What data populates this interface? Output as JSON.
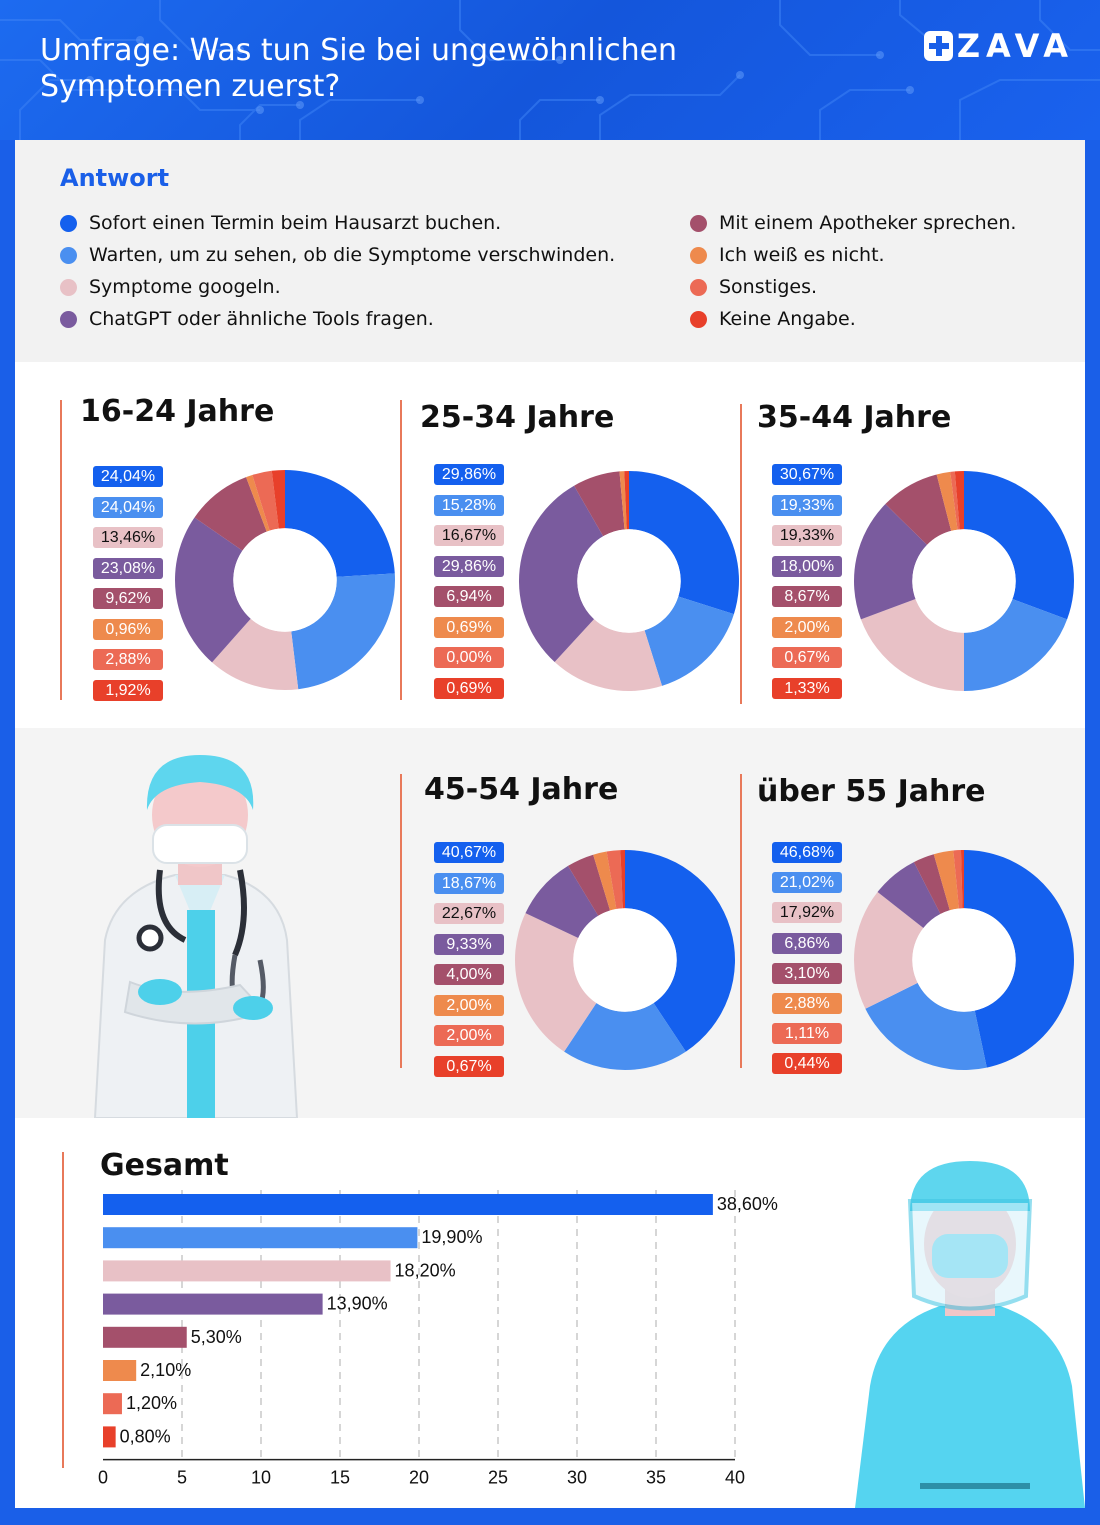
{
  "header": {
    "title_line1": "Umfrage: Was tun Sie bei ungewöhnlichen",
    "title_line2": "Symptomen zuerst?",
    "logo": "ZAVA"
  },
  "colors": [
    "#1460ee",
    "#4a8ff0",
    "#e8c1c6",
    "#7a5b9e",
    "#a4506b",
    "#ee8a4d",
    "#ec6a55",
    "#e8402a"
  ],
  "legend": {
    "title": "Antwort",
    "items": [
      "Sofort einen Termin beim Hausarzt buchen.",
      "Warten, um zu sehen, ob die Symptome verschwinden.",
      "Symptome googeln.",
      "ChatGPT oder ähnliche Tools fragen.",
      "Mit einem Apotheker sprechen.",
      "Ich weiß es nicht.",
      "Sonstiges.",
      "Keine Angabe."
    ]
  },
  "chart_data": [
    {
      "type": "pie",
      "title": "16-24 Jahre",
      "categories": [
        "Sofort einen Termin beim Hausarzt buchen.",
        "Warten, um zu sehen, ob die Symptome verschwinden.",
        "Symptome googeln.",
        "ChatGPT oder ähnliche Tools fragen.",
        "Mit einem Apotheker sprechen.",
        "Ich weiß es nicht.",
        "Sonstiges.",
        "Keine Angabe."
      ],
      "values": [
        24.04,
        24.04,
        13.46,
        23.08,
        9.62,
        0.96,
        2.88,
        1.92
      ],
      "labels": [
        "24,04%",
        "24,04%",
        "13,46%",
        "23,08%",
        "9,62%",
        "0,96%",
        "2,88%",
        "1,92%"
      ]
    },
    {
      "type": "pie",
      "title": "25-34 Jahre",
      "categories": [
        "Sofort einen Termin beim Hausarzt buchen.",
        "Warten, um zu sehen, ob die Symptome verschwinden.",
        "Symptome googeln.",
        "ChatGPT oder ähnliche Tools fragen.",
        "Mit einem Apotheker sprechen.",
        "Ich weiß es nicht.",
        "Sonstiges.",
        "Keine Angabe."
      ],
      "values": [
        29.86,
        15.28,
        16.67,
        29.86,
        6.94,
        0.69,
        0.0,
        0.69
      ],
      "labels": [
        "29,86%",
        "15,28%",
        "16,67%",
        "29,86%",
        "6,94%",
        "0,69%",
        "0,00%",
        "0,69%"
      ]
    },
    {
      "type": "pie",
      "title": "35-44 Jahre",
      "categories": [
        "Sofort einen Termin beim Hausarzt buchen.",
        "Warten, um zu sehen, ob die Symptome verschwinden.",
        "Symptome googeln.",
        "ChatGPT oder ähnliche Tools fragen.",
        "Mit einem Apotheker sprechen.",
        "Ich weiß es nicht.",
        "Sonstiges.",
        "Keine Angabe."
      ],
      "values": [
        30.67,
        19.33,
        19.33,
        18.0,
        8.67,
        2.0,
        0.67,
        1.33
      ],
      "labels": [
        "30,67%",
        "19,33%",
        "19,33%",
        "18,00%",
        "8,67%",
        "2,00%",
        "0,67%",
        "1,33%"
      ]
    },
    {
      "type": "pie",
      "title": "45-54 Jahre",
      "categories": [
        "Sofort einen Termin beim Hausarzt buchen.",
        "Warten, um zu sehen, ob die Symptome verschwinden.",
        "Symptome googeln.",
        "ChatGPT oder ähnliche Tools fragen.",
        "Mit einem Apotheker sprechen.",
        "Ich weiß es nicht.",
        "Sonstiges.",
        "Keine Angabe."
      ],
      "values": [
        40.67,
        18.67,
        22.67,
        9.33,
        4.0,
        2.0,
        2.0,
        0.67
      ],
      "labels": [
        "40,67%",
        "18,67%",
        "22,67%",
        "9,33%",
        "4,00%",
        "2,00%",
        "2,00%",
        "0,67%"
      ]
    },
    {
      "type": "pie",
      "title": "über 55 Jahre",
      "categories": [
        "Sofort einen Termin beim Hausarzt buchen.",
        "Warten, um zu sehen, ob die Symptome verschwinden.",
        "Symptome googeln.",
        "ChatGPT oder ähnliche Tools fragen.",
        "Mit einem Apotheker sprechen.",
        "Ich weiß es nicht.",
        "Sonstiges.",
        "Keine Angabe."
      ],
      "values": [
        46.68,
        21.02,
        17.92,
        6.86,
        3.1,
        2.88,
        1.11,
        0.44
      ],
      "labels": [
        "46,68%",
        "21,02%",
        "17,92%",
        "6,86%",
        "3,10%",
        "2,88%",
        "1,11%",
        "0,44%"
      ]
    },
    {
      "type": "bar",
      "orientation": "horizontal",
      "title": "Gesamt",
      "categories": [
        "Sofort einen Termin beim Hausarzt buchen.",
        "Warten, um zu sehen, ob die Symptome verschwinden.",
        "Symptome googeln.",
        "ChatGPT oder ähnliche Tools fragen.",
        "Mit einem Apotheker sprechen.",
        "Ich weiß es nicht.",
        "Sonstiges.",
        "Keine Angabe."
      ],
      "values": [
        38.6,
        19.9,
        18.2,
        13.9,
        5.3,
        2.1,
        1.2,
        0.8
      ],
      "labels": [
        "38,60%",
        "19,90%",
        "18,20%",
        "13,90%",
        "5,30%",
        "2,10%",
        "1,20%",
        "0,80%"
      ],
      "xlim": [
        0,
        40
      ],
      "xticks": [
        0,
        5,
        10,
        15,
        20,
        25,
        30,
        35,
        40
      ]
    }
  ]
}
